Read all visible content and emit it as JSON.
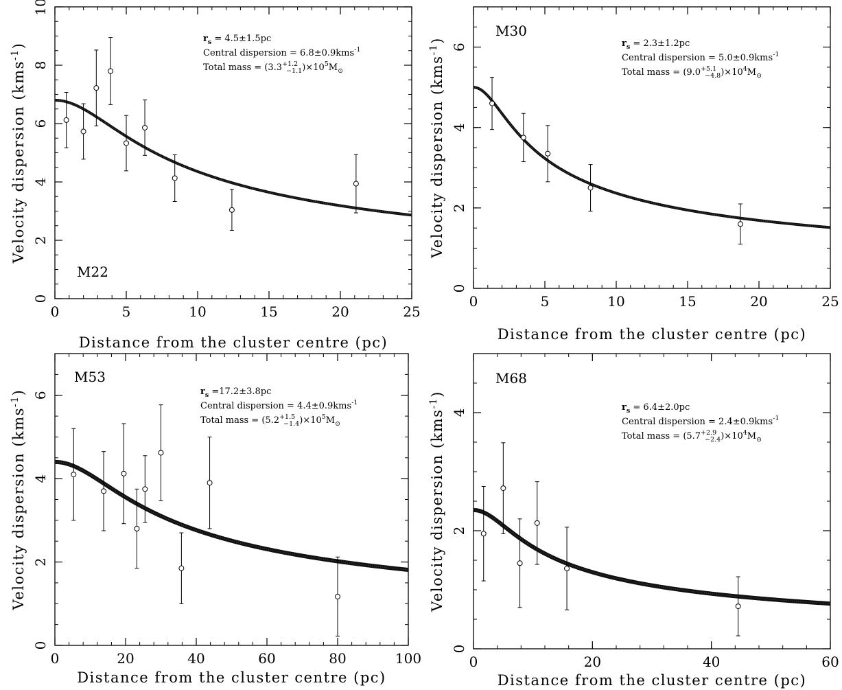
{
  "chart_data": [
    {
      "type": "scatter",
      "panel_label": "M22",
      "xlabel": "Distance from the cluster centre (pc)",
      "ylabel": "Velocity dispersion (kms",
      "ylabel_sup": "-1",
      "ylabel_close": ")",
      "xlim": [
        0,
        25
      ],
      "ylim": [
        0,
        10
      ],
      "xticks": [
        0,
        5,
        10,
        15,
        20,
        25
      ],
      "yticks": [
        0,
        2,
        4,
        6,
        8,
        10
      ],
      "annotations": {
        "rs": {
          "label": "r",
          "sub": "s",
          "text": " = 4.5±1.5pc"
        },
        "central": {
          "text": "Central dispersion = 6.8±0.9kms",
          "sup": "-1"
        },
        "mass": {
          "prefix": "Total mass = (3.3",
          "up": "+1.2",
          "down": "−1.1",
          "mid": ")×10",
          "exp": "5",
          "unit": "M",
          "sun": "⊙"
        }
      },
      "model_curve": {
        "central_dispersion": 6.8,
        "scale_radius": 4.5,
        "x_max": 25
      },
      "series": [
        {
          "points": [
            {
              "x": 0.8,
              "y": 6.12,
              "err": 0.95
            },
            {
              "x": 2.0,
              "y": 5.73,
              "err": 0.95
            },
            {
              "x": 2.9,
              "y": 7.22,
              "err": 1.3
            },
            {
              "x": 3.9,
              "y": 7.8,
              "err": 1.15
            },
            {
              "x": 5.0,
              "y": 5.33,
              "err": 0.95
            },
            {
              "x": 6.3,
              "y": 5.86,
              "err": 0.95
            },
            {
              "x": 8.4,
              "y": 4.13,
              "err": 0.8
            },
            {
              "x": 12.4,
              "y": 3.04,
              "err": 0.7
            },
            {
              "x": 21.1,
              "y": 3.94,
              "err": 1.0
            }
          ]
        }
      ]
    },
    {
      "type": "scatter",
      "panel_label": "M30",
      "xlabel": "Distance from the cluster centre (pc)",
      "ylabel": "Velocity dispersion (kms",
      "ylabel_sup": "-1",
      "ylabel_close": ")",
      "xlim": [
        0,
        25
      ],
      "ylim": [
        0,
        7
      ],
      "xticks": [
        0,
        5,
        10,
        15,
        20,
        25
      ],
      "yticks": [
        0,
        2,
        4,
        6
      ],
      "annotations": {
        "rs": {
          "label": "r",
          "sub": "s",
          "text": " = 2.3±1.2pc"
        },
        "central": {
          "text": "Central dispersion = 5.0±0.9kms",
          "sup": "-1"
        },
        "mass": {
          "prefix": "Total mass = (9.0",
          "up": "+5.1",
          "down": "−4.8",
          "mid": ")×10",
          "exp": "4",
          "unit": "M",
          "sun": "⊙"
        }
      },
      "model_curve": {
        "central_dispersion": 5.0,
        "scale_radius": 2.3,
        "x_max": 25
      },
      "series": [
        {
          "points": [
            {
              "x": 1.3,
              "y": 4.6,
              "err": 0.65
            },
            {
              "x": 3.5,
              "y": 3.75,
              "err": 0.6
            },
            {
              "x": 5.2,
              "y": 3.35,
              "err": 0.7
            },
            {
              "x": 8.2,
              "y": 2.5,
              "err": 0.58
            },
            {
              "x": 18.7,
              "y": 1.6,
              "err": 0.5
            }
          ]
        }
      ]
    },
    {
      "type": "scatter",
      "panel_label": "M53",
      "xlabel": "Distance from the cluster centre (pc)",
      "ylabel": "Velocity dispersion (kms",
      "ylabel_sup": "-1",
      "ylabel_close": ")",
      "xlim": [
        0,
        100
      ],
      "ylim": [
        0,
        7
      ],
      "xticks": [
        0,
        20,
        40,
        60,
        80,
        100
      ],
      "yticks": [
        0,
        2,
        4,
        6
      ],
      "annotations": {
        "rs": {
          "label": "r",
          "sub": "s",
          "text": " =17.2±3.8pc"
        },
        "central": {
          "text": "Central dispersion = 4.4±0.9kms",
          "sup": "-1"
        },
        "mass": {
          "prefix": "Total mass = (5.2",
          "up": "+1.5",
          "down": "−1.4",
          "mid": ")×10",
          "exp": "5",
          "unit": "M",
          "sun": "⊙"
        }
      },
      "model_curve": {
        "central_dispersion": 4.4,
        "scale_radius": 17.2,
        "x_max": 100
      },
      "series": [
        {
          "points": [
            {
              "x": 5.3,
              "y": 4.1,
              "err": 1.1
            },
            {
              "x": 13.8,
              "y": 3.7,
              "err": 0.95
            },
            {
              "x": 19.5,
              "y": 4.12,
              "err": 1.2
            },
            {
              "x": 23.2,
              "y": 2.8,
              "err": 0.95
            },
            {
              "x": 25.5,
              "y": 3.75,
              "err": 0.8
            },
            {
              "x": 30.0,
              "y": 4.62,
              "err": 1.15
            },
            {
              "x": 35.8,
              "y": 1.85,
              "err": 0.85
            },
            {
              "x": 43.8,
              "y": 3.9,
              "err": 1.1
            },
            {
              "x": 80.0,
              "y": 1.17,
              "err": 0.95
            }
          ]
        }
      ]
    },
    {
      "type": "scatter",
      "panel_label": "M68",
      "xlabel": "Distance from the cluster centre (pc)",
      "ylabel": "Velocity dispersion (kms",
      "ylabel_sup": "-1",
      "ylabel_close": ")",
      "xlim": [
        0,
        60
      ],
      "ylim": [
        0,
        5
      ],
      "xticks": [
        0,
        20,
        40,
        60
      ],
      "yticks": [
        0,
        2,
        4
      ],
      "annotations": {
        "rs": {
          "label": "r",
          "sub": "s",
          "text": " = 6.4±2.0pc"
        },
        "central": {
          "text": "Central dispersion = 2.4±0.9kms",
          "sup": "-1"
        },
        "mass": {
          "prefix": "Total mass = (5.7",
          "up": "+2.9",
          "down": "−2.4",
          "mid": ")×10",
          "exp": "4",
          "unit": "M",
          "sun": "⊙"
        }
      },
      "model_curve": {
        "central_dispersion": 2.35,
        "scale_radius": 6.4,
        "x_max": 60
      },
      "series": [
        {
          "points": [
            {
              "x": 1.7,
              "y": 1.95,
              "err": 0.8
            },
            {
              "x": 5.0,
              "y": 2.72,
              "err": 0.77
            },
            {
              "x": 7.8,
              "y": 1.45,
              "err": 0.75
            },
            {
              "x": 10.7,
              "y": 2.13,
              "err": 0.7
            },
            {
              "x": 15.7,
              "y": 1.36,
              "err": 0.7
            },
            {
              "x": 44.5,
              "y": 0.72,
              "err": 0.5
            }
          ]
        }
      ]
    }
  ]
}
